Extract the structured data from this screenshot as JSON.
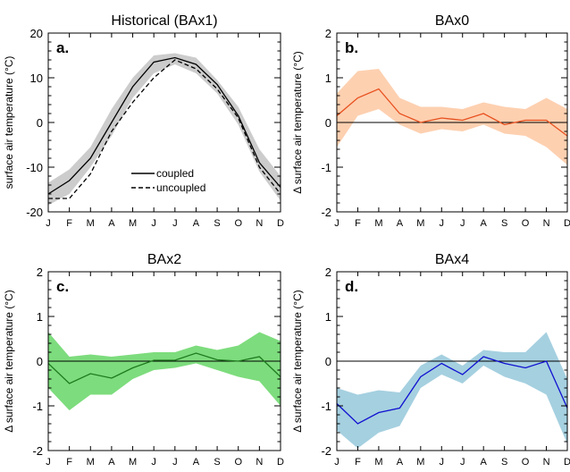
{
  "chart_data": [
    {
      "type": "line",
      "panel_letter": "a.",
      "title": "Historical (BAx1)",
      "ylabel": "surface air temperature (°C)",
      "xlabel": "",
      "categories": [
        "J",
        "F",
        "M",
        "A",
        "M",
        "J",
        "J",
        "A",
        "S",
        "O",
        "N",
        "D"
      ],
      "ylim": [
        -20,
        20
      ],
      "yticks": [
        -20,
        -10,
        0,
        10,
        20
      ],
      "zero_line": false,
      "band": {
        "lower": [
          -18.5,
          -16,
          -10,
          -3,
          5.5,
          11,
          13,
          11,
          6.5,
          -0.5,
          -11,
          -17.5
        ],
        "upper": [
          -13.5,
          -10.5,
          -5.5,
          3,
          10,
          15,
          15.5,
          14.5,
          9.5,
          3.5,
          -6,
          -12
        ],
        "color": "#cccccc"
      },
      "series": [
        {
          "name": "coupled",
          "style": "solid",
          "color": "#000000",
          "values": [
            -16,
            -13,
            -8,
            0,
            8,
            13.5,
            14.5,
            13,
            8.5,
            1.5,
            -9,
            -14.5
          ]
        },
        {
          "name": "uncoupled",
          "style": "dashed",
          "color": "#000000",
          "values": [
            -17,
            -17,
            -11.5,
            -2,
            4.5,
            10,
            14,
            12,
            7.5,
            1,
            -10,
            -16
          ]
        }
      ],
      "legend": {
        "placement": "lower-right",
        "entries": [
          "coupled",
          "uncoupled"
        ]
      }
    },
    {
      "type": "line",
      "panel_letter": "b.",
      "title": "BAx0",
      "ylabel": "Δ surface air temperature (°C)",
      "xlabel": "",
      "categories": [
        "J",
        "F",
        "M",
        "A",
        "M",
        "J",
        "J",
        "A",
        "S",
        "O",
        "N",
        "D"
      ],
      "ylim": [
        -2,
        2
      ],
      "yticks": [
        -2,
        -1,
        0,
        1,
        2
      ],
      "zero_line": true,
      "band": {
        "lower": [
          -0.55,
          0.15,
          0.3,
          -0.05,
          -0.25,
          -0.15,
          -0.2,
          -0.05,
          -0.25,
          -0.3,
          -0.55,
          -0.95
        ],
        "upper": [
          0.65,
          1.15,
          1.2,
          0.55,
          0.35,
          0.35,
          0.3,
          0.45,
          0.35,
          0.3,
          0.55,
          0.3
        ],
        "color": "#fdd0b0"
      },
      "series": [
        {
          "name": "",
          "style": "solid",
          "color": "#e8501e",
          "values": [
            0.15,
            0.55,
            0.75,
            0.2,
            0.0,
            0.1,
            0.05,
            0.2,
            -0.05,
            0.05,
            0.05,
            -0.3
          ]
        }
      ]
    },
    {
      "type": "line",
      "panel_letter": "c.",
      "title": "BAx2",
      "ylabel": "Δ surface air temperature (°C)",
      "xlabel": "",
      "categories": [
        "J",
        "F",
        "M",
        "A",
        "M",
        "J",
        "J",
        "A",
        "S",
        "O",
        "N",
        "D"
      ],
      "ylim": [
        -2,
        2
      ],
      "yticks": [
        -2,
        -1,
        0,
        1,
        2
      ],
      "zero_line": true,
      "band": {
        "lower": [
          -0.6,
          -1.1,
          -0.75,
          -0.75,
          -0.4,
          -0.2,
          -0.15,
          -0.05,
          -0.2,
          -0.35,
          -0.45,
          -1.0
        ],
        "upper": [
          0.65,
          0.1,
          0.15,
          0.1,
          0.15,
          0.2,
          0.2,
          0.35,
          0.25,
          0.35,
          0.65,
          0.45
        ],
        "color": "#7ddc7d"
      },
      "series": [
        {
          "name": "",
          "style": "solid",
          "color": "#1e7a1e",
          "values": [
            -0.05,
            -0.5,
            -0.28,
            -0.38,
            -0.15,
            0.02,
            0.02,
            0.18,
            0.03,
            0.0,
            0.1,
            -0.35
          ]
        }
      ]
    },
    {
      "type": "line",
      "panel_letter": "d.",
      "title": "BAx4",
      "ylabel": "Δ surface air temperature (°C)",
      "xlabel": "",
      "categories": [
        "J",
        "F",
        "M",
        "A",
        "M",
        "J",
        "J",
        "A",
        "S",
        "O",
        "N",
        "D"
      ],
      "ylim": [
        -2,
        2
      ],
      "yticks": [
        -2,
        -1,
        0,
        1,
        2
      ],
      "zero_line": true,
      "band": {
        "lower": [
          -1.55,
          -1.95,
          -1.6,
          -1.45,
          -0.6,
          -0.3,
          -0.5,
          -0.1,
          -0.35,
          -0.5,
          -0.75,
          -1.85
        ],
        "upper": [
          -0.6,
          -0.75,
          -0.65,
          -0.7,
          -0.1,
          0.15,
          -0.1,
          0.25,
          0.2,
          0.2,
          0.65,
          -0.4
        ],
        "color": "#a5d0e0"
      },
      "series": [
        {
          "name": "",
          "style": "solid",
          "color": "#1010d0",
          "values": [
            -0.95,
            -1.4,
            -1.15,
            -1.05,
            -0.35,
            -0.05,
            -0.3,
            0.1,
            -0.05,
            -0.15,
            0.0,
            -1.05
          ]
        }
      ]
    }
  ]
}
